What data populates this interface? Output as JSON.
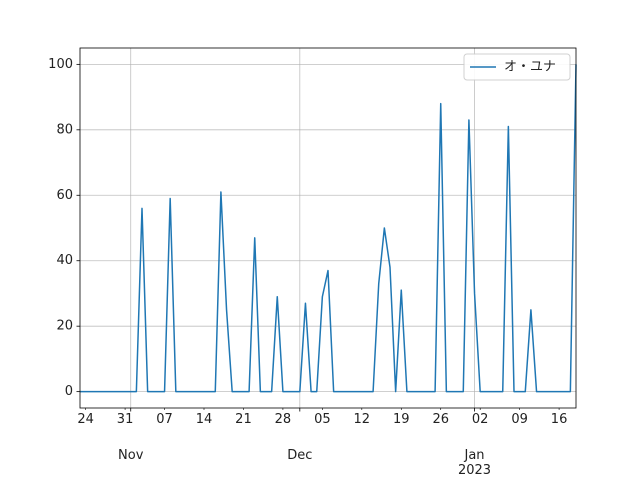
{
  "chart_data": {
    "type": "line",
    "x": [
      "2022-10-23",
      "2022-10-24",
      "2022-10-25",
      "2022-10-26",
      "2022-10-27",
      "2022-10-28",
      "2022-10-29",
      "2022-10-30",
      "2022-10-31",
      "2022-11-01",
      "2022-11-02",
      "2022-11-03",
      "2022-11-04",
      "2022-11-05",
      "2022-11-06",
      "2022-11-07",
      "2022-11-08",
      "2022-11-09",
      "2022-11-10",
      "2022-11-11",
      "2022-11-12",
      "2022-11-13",
      "2022-11-14",
      "2022-11-15",
      "2022-11-16",
      "2022-11-17",
      "2022-11-18",
      "2022-11-19",
      "2022-11-20",
      "2022-11-21",
      "2022-11-22",
      "2022-11-23",
      "2022-11-24",
      "2022-11-25",
      "2022-11-26",
      "2022-11-27",
      "2022-11-28",
      "2022-11-29",
      "2022-11-30",
      "2022-12-01",
      "2022-12-02",
      "2022-12-03",
      "2022-12-04",
      "2022-12-05",
      "2022-12-06",
      "2022-12-07",
      "2022-12-08",
      "2022-12-09",
      "2022-12-10",
      "2022-12-11",
      "2022-12-12",
      "2022-12-13",
      "2022-12-14",
      "2022-12-15",
      "2022-12-16",
      "2022-12-17",
      "2022-12-18",
      "2022-12-19",
      "2022-12-20",
      "2022-12-21",
      "2022-12-22",
      "2022-12-23",
      "2022-12-24",
      "2022-12-25",
      "2022-12-26",
      "2022-12-27",
      "2022-12-28",
      "2022-12-29",
      "2022-12-30",
      "2022-12-31",
      "2023-01-01",
      "2023-01-02",
      "2023-01-03",
      "2023-01-04",
      "2023-01-05",
      "2023-01-06",
      "2023-01-07",
      "2023-01-08",
      "2023-01-09",
      "2023-01-10",
      "2023-01-11",
      "2023-01-12",
      "2023-01-13",
      "2023-01-14",
      "2023-01-15",
      "2023-01-16",
      "2023-01-17",
      "2023-01-18",
      "2023-01-19"
    ],
    "series": [
      {
        "name": "オ・ユナ",
        "color": "#1f77b4",
        "values": [
          0,
          0,
          0,
          0,
          0,
          0,
          0,
          0,
          0,
          0,
          0,
          56,
          0,
          0,
          0,
          0,
          59,
          0,
          0,
          0,
          0,
          0,
          0,
          0,
          0,
          61,
          25,
          0,
          0,
          0,
          0,
          47,
          0,
          0,
          0,
          29,
          0,
          0,
          0,
          0,
          27,
          0,
          0,
          29,
          37,
          0,
          0,
          0,
          0,
          0,
          0,
          0,
          0,
          33,
          50,
          38,
          0,
          31,
          0,
          0,
          0,
          0,
          0,
          0,
          88,
          0,
          0,
          0,
          0,
          83,
          30,
          0,
          0,
          0,
          0,
          0,
          81,
          0,
          0,
          0,
          25,
          0,
          0,
          0,
          0,
          0,
          0,
          0,
          100
        ]
      }
    ],
    "xlim": [
      "2022-10-23",
      "2023-01-19"
    ],
    "xticks": [
      {
        "value": "2022-10-24",
        "label": "24"
      },
      {
        "value": "2022-10-31",
        "label": "31"
      },
      {
        "value": "2022-11-07",
        "label": "07"
      },
      {
        "value": "2022-11-14",
        "label": "14"
      },
      {
        "value": "2022-11-21",
        "label": "21"
      },
      {
        "value": "2022-11-28",
        "label": "28"
      },
      {
        "value": "2022-12-05",
        "label": "05"
      },
      {
        "value": "2022-12-12",
        "label": "12"
      },
      {
        "value": "2022-12-19",
        "label": "19"
      },
      {
        "value": "2022-12-26",
        "label": "26"
      },
      {
        "value": "2023-01-02",
        "label": "02"
      },
      {
        "value": "2023-01-09",
        "label": "09"
      },
      {
        "value": "2023-01-16",
        "label": "16"
      }
    ],
    "xticks_major": [
      {
        "value": "2022-11-01",
        "label": "Nov"
      },
      {
        "value": "2022-12-01",
        "label": "Dec"
      },
      {
        "value": "2023-01-01",
        "label": "Jan\n2023"
      }
    ],
    "ylim": [
      -5,
      105
    ],
    "yticks": [
      0,
      20,
      40,
      60,
      80,
      100
    ],
    "grid": true,
    "legend": "upper right"
  }
}
